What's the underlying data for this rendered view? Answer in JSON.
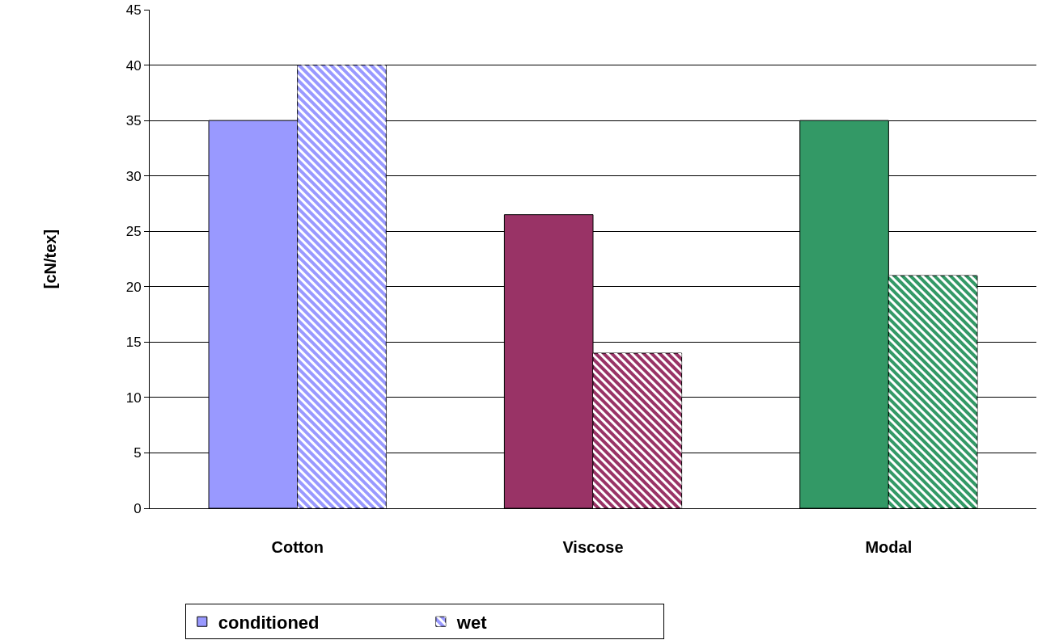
{
  "chart_data": {
    "type": "bar",
    "ylabel": "[cN/tex]",
    "categories": [
      "Cotton",
      "Viscose",
      "Modal"
    ],
    "series": [
      {
        "name": "conditioned",
        "colors": [
          "#9999ff",
          "#993366",
          "#339966"
        ],
        "values": [
          35,
          26.5,
          35
        ]
      },
      {
        "name": "wet",
        "colors": [
          "#9999ff",
          "#993366",
          "#339966"
        ],
        "values": [
          40,
          14,
          21
        ]
      }
    ],
    "ylim": [
      0,
      45
    ],
    "yticks": [
      0,
      5,
      10,
      15,
      20,
      25,
      30,
      35,
      40,
      45
    ],
    "grid": "y",
    "legend": "bottom left"
  }
}
